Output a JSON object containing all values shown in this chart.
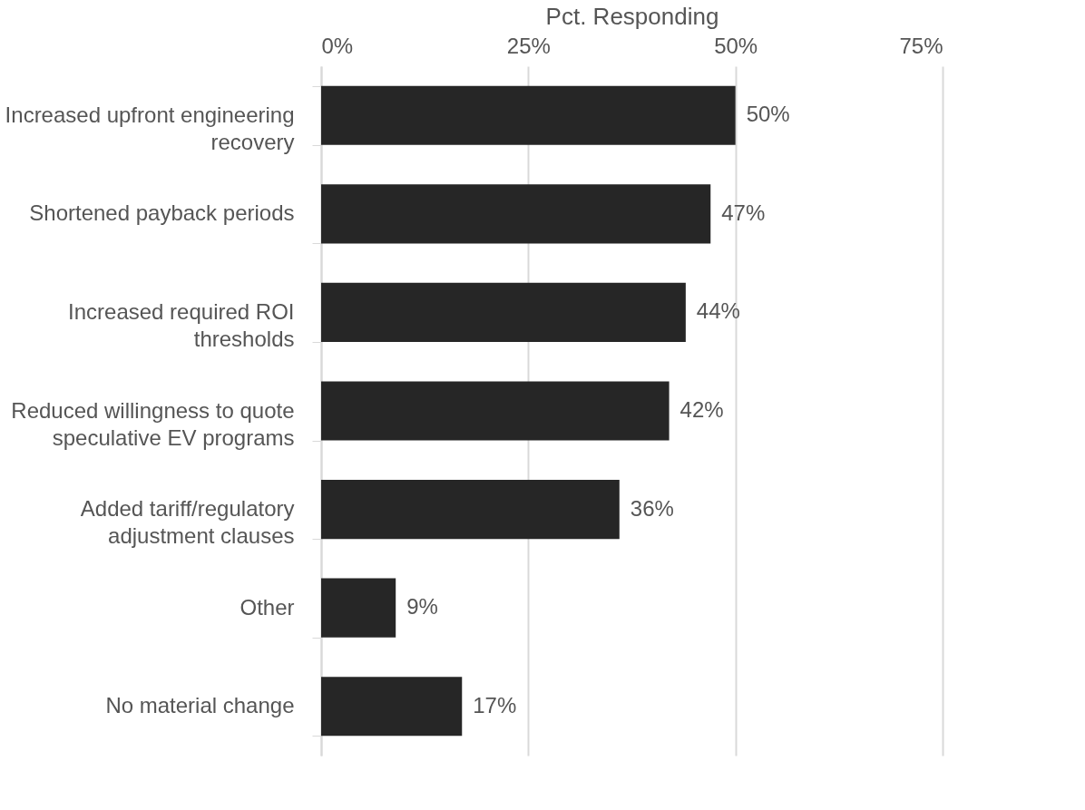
{
  "chart_data": {
    "type": "bar",
    "orientation": "horizontal",
    "xlabel": "Pct. Responding",
    "categories": [
      "Increased upfront engineering recovery",
      "Shortened payback periods",
      "Increased required ROI thresholds",
      "Reduced willingness to quote speculative EV programs",
      "Added tariff/regulatory adjustment clauses",
      "Other",
      "No material change"
    ],
    "values": [
      50,
      47,
      44,
      42,
      36,
      9,
      17
    ],
    "value_labels": [
      "50%",
      "47%",
      "44%",
      "42%",
      "36%",
      "9%",
      "17%"
    ],
    "color": "#262626",
    "xlim": [
      0,
      75
    ],
    "xticks": [
      {
        "value": 0,
        "label": "0%"
      },
      {
        "value": 25,
        "label": "25%"
      },
      {
        "value": 50,
        "label": "50%"
      },
      {
        "value": 75,
        "label": "75%"
      }
    ],
    "grid": "x"
  }
}
